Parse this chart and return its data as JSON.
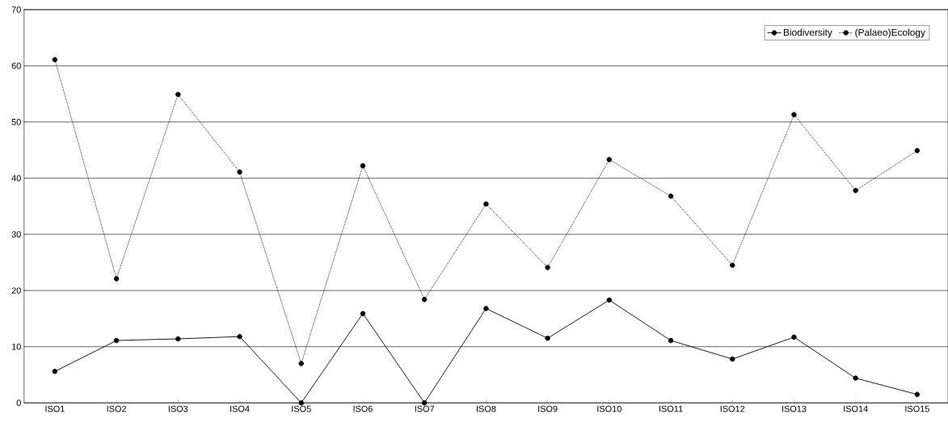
{
  "chart_data": {
    "type": "line",
    "categories": [
      "ISO1",
      "ISO2",
      "ISO3",
      "ISO4",
      "ISO5",
      "ISO6",
      "ISO7",
      "ISO8",
      "ISO9",
      "ISO10",
      "ISO11",
      "ISO12",
      "ISO13",
      "ISO14",
      "ISO15"
    ],
    "series": [
      {
        "name": "Biodiversity",
        "color": "#000000",
        "line_style": "solid",
        "values": [
          5.6,
          11.1,
          11.4,
          11.8,
          0,
          15.9,
          0,
          16.8,
          11.5,
          18.3,
          11.1,
          7.8,
          11.7,
          4.4,
          1.5
        ]
      },
      {
        "name": "(Palaeo)Ecology",
        "color": "#000000",
        "line_style": "dotted",
        "values": [
          61.1,
          22.1,
          54.9,
          41.1,
          7.0,
          42.2,
          18.4,
          35.4,
          24.1,
          43.3,
          36.8,
          24.5,
          51.3,
          37.8,
          44.9
        ]
      }
    ],
    "ylim": [
      0,
      70
    ],
    "yticks": [
      0,
      10,
      20,
      30,
      40,
      50,
      60,
      70
    ],
    "grid": "y",
    "legend": "top right",
    "marker": "circle"
  }
}
